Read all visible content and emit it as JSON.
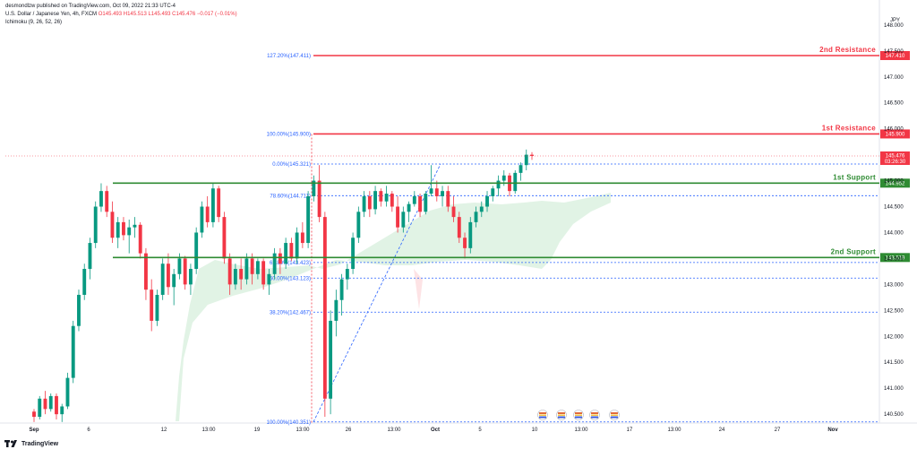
{
  "header": {
    "published_line": "desmondlzw published on TradingView.com, Oct 09, 2022 21:33 UTC-4",
    "symbol_line": "U.S. Dollar / Japanese Yen, 4h, FXCM",
    "ohlc": {
      "o": "O145.493",
      "h": "H145.513",
      "l": "L145.493",
      "c": "C145.476",
      "chg": "−0.017 (−0.01%)"
    },
    "indicator": "Ichimoku (9, 26, 52, 26)"
  },
  "currency": "JPY",
  "footer": {
    "brand": "TradingView"
  },
  "colors": {
    "up": "#089981",
    "down": "#f23645",
    "resistance": "#f23645",
    "support": "#2e8b32",
    "fib": "#2962ff",
    "cloud": "#d7efdc"
  },
  "chart_data": {
    "type": "candlestick",
    "symbol": "USDJPY",
    "timeframe": "4h",
    "ylim": [
      140.33,
      148.17
    ],
    "y_ticks": [
      "148.000",
      "147.500",
      "147.000",
      "146.500",
      "146.000",
      "145.500",
      "145.000",
      "144.500",
      "144.000",
      "143.500",
      "143.000",
      "142.500",
      "142.000",
      "141.500",
      "141.000",
      "140.500"
    ],
    "x_ticks": [
      "Sep",
      "6",
      "12",
      "13:00",
      "19",
      "13:00",
      "26",
      "13:00",
      "Oct",
      "5",
      "10",
      "13:00",
      "17",
      "13:00",
      "24",
      "27",
      "Nov"
    ],
    "levels": [
      {
        "name": "2nd Resistance",
        "value": 147.41,
        "label": "147.410",
        "kind": "resistance"
      },
      {
        "name": "1st Resistance",
        "value": 145.9,
        "label": "145.900",
        "kind": "resistance"
      },
      {
        "name": "1st Support",
        "value": 144.952,
        "label": "144.952",
        "kind": "support"
      },
      {
        "name": "2nd Support",
        "value": 143.519,
        "label": "143.519",
        "kind": "support"
      }
    ],
    "fib_levels": [
      {
        "label": "127.20%(147.411)",
        "value": 147.411
      },
      {
        "label": "100.00%(145.900)",
        "value": 145.9
      },
      {
        "label": "0.00%(145.321)",
        "value": 145.321
      },
      {
        "label": "78.60%(144.711)",
        "value": 144.711
      },
      {
        "label": "61.80%(143.423)",
        "value": 143.423
      },
      {
        "label": "50.00%(143.123)",
        "value": 143.123
      },
      {
        "label": "38.20%(142.467)",
        "value": 142.467
      },
      {
        "label": "100.00%(140.351)",
        "value": 140.351
      }
    ],
    "last_price": {
      "value": 145.476,
      "label": "145.476",
      "countdown": "03:26:30"
    },
    "candles": [
      [
        140.55,
        140.6,
        140.35,
        140.45
      ],
      [
        140.45,
        140.85,
        140.4,
        140.8
      ],
      [
        140.8,
        140.95,
        140.5,
        140.6
      ],
      [
        140.6,
        140.9,
        140.55,
        140.85
      ],
      [
        140.85,
        140.9,
        140.4,
        140.5
      ],
      [
        140.5,
        140.7,
        140.35,
        140.65
      ],
      [
        140.65,
        141.3,
        140.6,
        141.2
      ],
      [
        141.2,
        142.3,
        141.1,
        142.2
      ],
      [
        142.2,
        142.9,
        142.1,
        142.8
      ],
      [
        142.8,
        143.4,
        142.7,
        143.3
      ],
      [
        143.3,
        143.9,
        143.1,
        143.8
      ],
      [
        143.8,
        144.6,
        143.7,
        144.5
      ],
      [
        144.5,
        144.95,
        144.4,
        144.8
      ],
      [
        144.8,
        144.9,
        144.3,
        144.4
      ],
      [
        144.4,
        144.6,
        143.8,
        143.9
      ],
      [
        143.9,
        144.3,
        143.7,
        144.2
      ],
      [
        144.2,
        144.3,
        143.85,
        143.95
      ],
      [
        143.95,
        144.25,
        143.6,
        144.1
      ],
      [
        144.1,
        144.3,
        143.9,
        144.15
      ],
      [
        144.15,
        144.2,
        143.5,
        143.6
      ],
      [
        143.6,
        143.7,
        142.7,
        142.9
      ],
      [
        142.9,
        143.1,
        142.1,
        142.3
      ],
      [
        142.3,
        142.9,
        142.2,
        142.8
      ],
      [
        142.8,
        143.5,
        142.7,
        143.4
      ],
      [
        143.4,
        143.6,
        142.8,
        142.95
      ],
      [
        142.95,
        143.3,
        142.6,
        143.2
      ],
      [
        143.2,
        143.6,
        143.1,
        143.5
      ],
      [
        143.5,
        143.55,
        142.9,
        143.0
      ],
      [
        143.0,
        143.4,
        142.8,
        143.3
      ],
      [
        143.3,
        144.1,
        143.2,
        144.0
      ],
      [
        144.0,
        144.6,
        143.9,
        144.5
      ],
      [
        144.5,
        144.7,
        144.1,
        144.2
      ],
      [
        144.2,
        144.95,
        144.1,
        144.85
      ],
      [
        144.85,
        144.9,
        144.2,
        144.3
      ],
      [
        144.3,
        144.4,
        143.4,
        143.5
      ],
      [
        143.5,
        143.6,
        142.8,
        143.0
      ],
      [
        143.0,
        143.4,
        142.9,
        143.3
      ],
      [
        143.3,
        143.5,
        142.9,
        143.1
      ],
      [
        143.1,
        143.6,
        143.0,
        143.5
      ],
      [
        143.5,
        143.6,
        143.0,
        143.2
      ],
      [
        143.2,
        143.5,
        143.1,
        143.45
      ],
      [
        143.45,
        143.5,
        142.9,
        143.0
      ],
      [
        143.0,
        143.3,
        142.8,
        143.2
      ],
      [
        143.2,
        143.7,
        143.1,
        143.6
      ],
      [
        143.6,
        143.7,
        143.2,
        143.4
      ],
      [
        143.4,
        143.9,
        143.3,
        143.8
      ],
      [
        143.8,
        143.9,
        143.45,
        143.5
      ],
      [
        143.5,
        144.1,
        143.4,
        144.0
      ],
      [
        144.0,
        144.2,
        143.7,
        143.8
      ],
      [
        143.8,
        144.8,
        143.7,
        144.7
      ],
      [
        144.7,
        145.1,
        144.6,
        145.0
      ],
      [
        145.0,
        145.3,
        144.2,
        144.3
      ],
      [
        144.3,
        144.4,
        140.45,
        140.8
      ],
      [
        140.8,
        142.5,
        140.5,
        142.3
      ],
      [
        142.3,
        142.9,
        142.0,
        142.7
      ],
      [
        142.7,
        143.2,
        142.4,
        143.1
      ],
      [
        143.1,
        143.4,
        142.9,
        143.3
      ],
      [
        143.3,
        144.0,
        143.2,
        143.9
      ],
      [
        143.9,
        144.5,
        143.8,
        144.4
      ],
      [
        144.4,
        144.8,
        144.3,
        144.7
      ],
      [
        144.7,
        144.8,
        144.3,
        144.45
      ],
      [
        144.45,
        144.9,
        144.35,
        144.8
      ],
      [
        144.8,
        144.85,
        144.5,
        144.6
      ],
      [
        144.6,
        144.9,
        144.5,
        144.75
      ],
      [
        144.75,
        144.8,
        144.4,
        144.5
      ],
      [
        144.5,
        144.7,
        144.0,
        144.1
      ],
      [
        144.1,
        144.5,
        144.0,
        144.4
      ],
      [
        144.4,
        144.6,
        144.2,
        144.55
      ],
      [
        144.55,
        144.8,
        144.5,
        144.7
      ],
      [
        144.7,
        144.75,
        144.3,
        144.4
      ],
      [
        144.4,
        144.8,
        144.35,
        144.75
      ],
      [
        144.75,
        145.3,
        144.7,
        144.85
      ],
      [
        144.85,
        145.0,
        144.6,
        144.7
      ],
      [
        144.7,
        144.9,
        144.5,
        144.8
      ],
      [
        144.8,
        144.9,
        144.4,
        144.5
      ],
      [
        144.5,
        144.7,
        144.2,
        144.3
      ],
      [
        144.3,
        144.4,
        143.8,
        143.9
      ],
      [
        143.9,
        144.0,
        143.5,
        143.7
      ],
      [
        143.7,
        144.3,
        143.6,
        144.2
      ],
      [
        144.2,
        144.5,
        144.1,
        144.4
      ],
      [
        144.4,
        144.6,
        144.3,
        144.5
      ],
      [
        144.5,
        144.8,
        144.4,
        144.7
      ],
      [
        144.7,
        144.9,
        144.6,
        144.85
      ],
      [
        144.85,
        145.1,
        144.7,
        145.0
      ],
      [
        145.0,
        145.2,
        144.9,
        145.1
      ],
      [
        145.1,
        145.15,
        144.7,
        144.8
      ],
      [
        144.8,
        145.2,
        144.75,
        145.15
      ],
      [
        145.15,
        145.35,
        145.0,
        145.3
      ],
      [
        145.3,
        145.6,
        145.2,
        145.5
      ],
      [
        145.5,
        145.55,
        145.4,
        145.476
      ]
    ],
    "x_label": "",
    "y_label": ""
  }
}
